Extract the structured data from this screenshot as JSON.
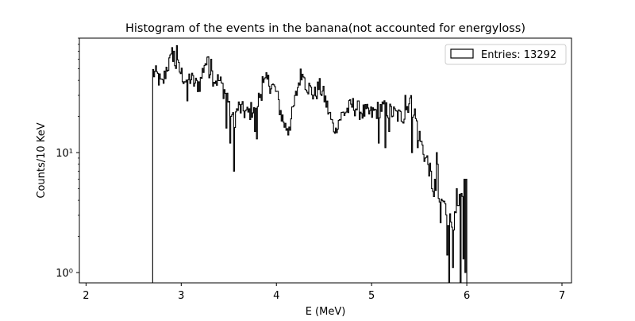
{
  "chart_data": {
    "type": "histogram",
    "title": "Histogram of the events in the banana(not accounted for energyloss)",
    "xlabel": "E (MeV)",
    "ylabel": "Counts/10 KeV",
    "xscale": "linear",
    "yscale": "log",
    "xlim": [
      1.93,
      7.1
    ],
    "ylim": [
      0.82,
      90
    ],
    "x_ticks": [
      2,
      3,
      4,
      5,
      6,
      7
    ],
    "x_tick_labels": [
      "2",
      "3",
      "4",
      "5",
      "6",
      "7"
    ],
    "y_ticks": [
      1,
      10
    ],
    "y_tick_labels": [
      "10⁰",
      "10¹"
    ],
    "legend": {
      "position": "top-right",
      "entries": [
        "Entries: 13292"
      ]
    },
    "grid": false,
    "bin_width": 0.01,
    "x_start": 2.7,
    "x_end": 6.0,
    "series": [
      {
        "style": "step",
        "color": "#000000",
        "profile_keypoints": [
          [
            2.7,
            47
          ],
          [
            2.75,
            44
          ],
          [
            2.8,
            36
          ],
          [
            2.85,
            52
          ],
          [
            2.9,
            60
          ],
          [
            2.95,
            54
          ],
          [
            3.0,
            46
          ],
          [
            3.05,
            40
          ],
          [
            3.1,
            42
          ],
          [
            3.15,
            37
          ],
          [
            3.2,
            38
          ],
          [
            3.25,
            58
          ],
          [
            3.3,
            50
          ],
          [
            3.35,
            41
          ],
          [
            3.4,
            40
          ],
          [
            3.5,
            28
          ],
          [
            3.55,
            18
          ],
          [
            3.6,
            24
          ],
          [
            3.7,
            21
          ],
          [
            3.8,
            26
          ],
          [
            3.85,
            34
          ],
          [
            3.9,
            40
          ],
          [
            3.95,
            37
          ],
          [
            4.0,
            32
          ],
          [
            4.05,
            21
          ],
          [
            4.1,
            16
          ],
          [
            4.15,
            18
          ],
          [
            4.2,
            28
          ],
          [
            4.25,
            44
          ],
          [
            4.3,
            40
          ],
          [
            4.35,
            34
          ],
          [
            4.4,
            30
          ],
          [
            4.45,
            36
          ],
          [
            4.5,
            30
          ],
          [
            4.55,
            22
          ],
          [
            4.6,
            16
          ],
          [
            4.7,
            21
          ],
          [
            4.8,
            25
          ],
          [
            4.9,
            22
          ],
          [
            5.0,
            21
          ],
          [
            5.1,
            24
          ],
          [
            5.2,
            22
          ],
          [
            5.3,
            20
          ],
          [
            5.35,
            21
          ],
          [
            5.4,
            28
          ],
          [
            5.45,
            22
          ],
          [
            5.5,
            14
          ],
          [
            5.55,
            10
          ],
          [
            5.6,
            8
          ],
          [
            5.65,
            5
          ],
          [
            5.7,
            3.5
          ],
          [
            5.75,
            4
          ],
          [
            5.8,
            3
          ],
          [
            5.85,
            2.5
          ],
          [
            5.9,
            3
          ],
          [
            5.95,
            4
          ],
          [
            6.0,
            5
          ]
        ],
        "dips": [
          [
            3.06,
            27
          ],
          [
            3.55,
            7
          ],
          [
            3.51,
            12
          ],
          [
            3.47,
            16
          ],
          [
            3.77,
            15
          ],
          [
            3.79,
            13
          ],
          [
            4.12,
            14
          ],
          [
            4.62,
            16
          ],
          [
            5.07,
            12
          ],
          [
            5.14,
            11
          ],
          [
            5.18,
            15
          ],
          [
            5.42,
            10
          ],
          [
            5.48,
            11
          ],
          [
            5.56,
            9
          ],
          [
            5.63,
            5
          ],
          [
            5.66,
            6
          ],
          [
            5.72,
            2.6
          ],
          [
            5.79,
            1.4
          ],
          [
            5.81,
            0.8
          ],
          [
            5.85,
            1.1
          ],
          [
            5.89,
            1.0
          ],
          [
            5.93,
            0.8
          ],
          [
            5.96,
            1.3
          ],
          [
            5.98,
            1.0
          ],
          [
            6.0,
            0.8
          ]
        ],
        "peaks": [
          [
            2.9,
            75
          ],
          [
            2.92,
            70
          ],
          [
            2.95,
            78
          ],
          [
            3.28,
            63
          ],
          [
            3.31,
            60
          ],
          [
            3.85,
            43
          ],
          [
            4.27,
            45
          ],
          [
            4.29,
            42
          ],
          [
            5.35,
            30
          ],
          [
            5.68,
            10
          ],
          [
            5.69,
            8
          ],
          [
            5.89,
            5
          ],
          [
            5.92,
            4.5
          ],
          [
            5.97,
            6
          ],
          [
            5.99,
            6
          ]
        ]
      }
    ]
  }
}
